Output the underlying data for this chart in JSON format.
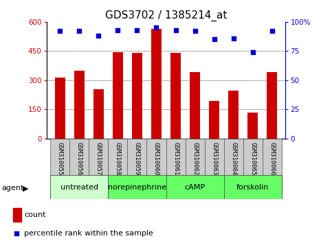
{
  "title": "GDS3702 / 1385214_at",
  "samples": [
    "GSM310055",
    "GSM310056",
    "GSM310057",
    "GSM310058",
    "GSM310059",
    "GSM310060",
    "GSM310061",
    "GSM310062",
    "GSM310063",
    "GSM310064",
    "GSM310065",
    "GSM310066"
  ],
  "counts": [
    315,
    350,
    255,
    445,
    440,
    565,
    440,
    340,
    195,
    245,
    135,
    340
  ],
  "percentiles": [
    92,
    92,
    88,
    93,
    93,
    95,
    93,
    92,
    85,
    86,
    74,
    92
  ],
  "groups": [
    {
      "label": "untreated",
      "start": 0,
      "end": 3,
      "color": "#ccffcc"
    },
    {
      "label": "norepinephrine",
      "start": 3,
      "end": 6,
      "color": "#66ff66"
    },
    {
      "label": "cAMP",
      "start": 6,
      "end": 9,
      "color": "#66ff66"
    },
    {
      "label": "forskolin",
      "start": 9,
      "end": 12,
      "color": "#66ff66"
    }
  ],
  "bar_color": "#cc0000",
  "dot_color": "#0000cc",
  "left_ylim": [
    0,
    600
  ],
  "left_yticks": [
    0,
    150,
    300,
    450,
    600
  ],
  "right_ylim": [
    0,
    100
  ],
  "right_yticks": [
    0,
    25,
    50,
    75,
    100
  ],
  "title_fontsize": 11,
  "tick_fontsize": 7.5,
  "sample_fontsize": 6.5,
  "group_fontsize": 8,
  "legend_fontsize": 8
}
